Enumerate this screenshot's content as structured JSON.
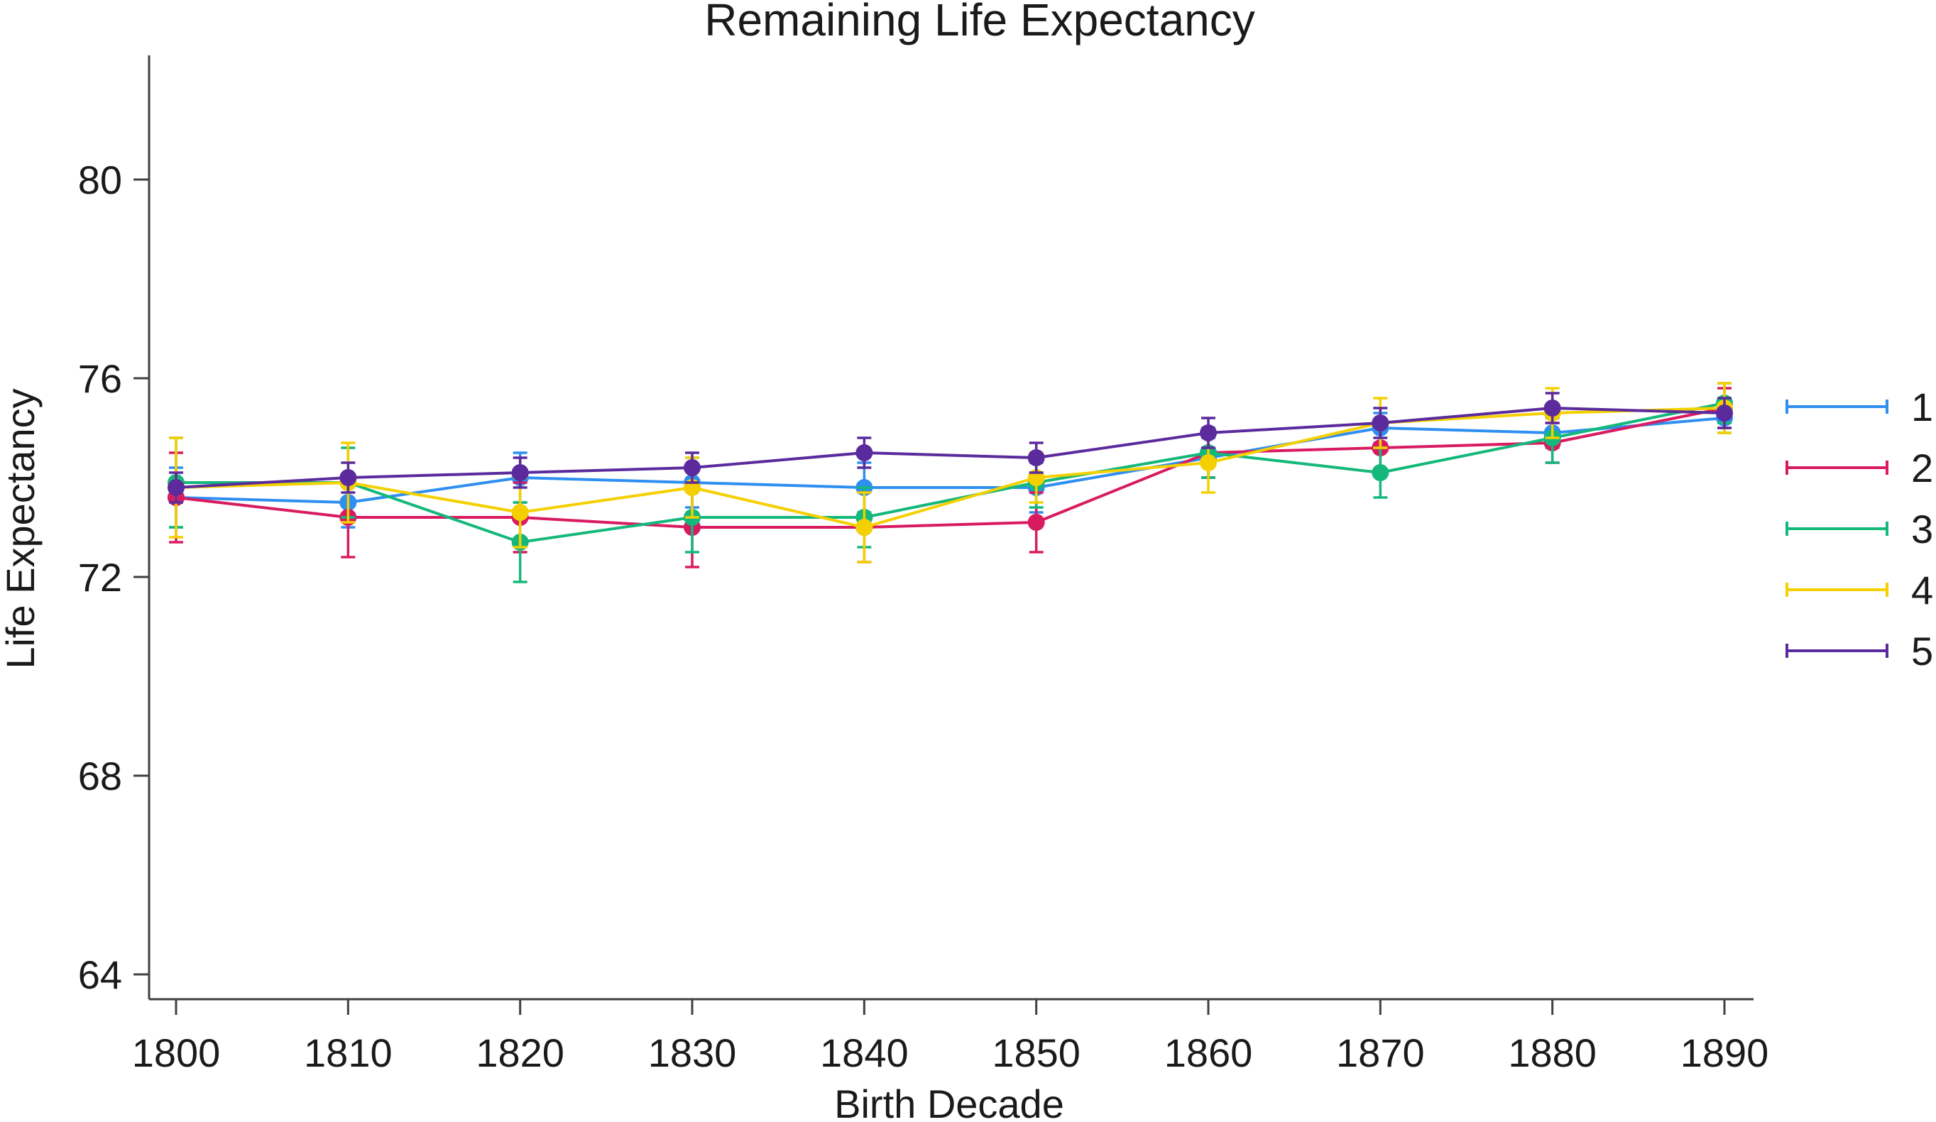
{
  "chart_data": {
    "type": "line",
    "title": "Remaining Life Expectancy",
    "xlabel": "Birth Decade",
    "ylabel": "Life Expectancy",
    "x": [
      1800,
      1810,
      1820,
      1830,
      1840,
      1850,
      1860,
      1870,
      1880,
      1890
    ],
    "xlim": [
      1800,
      1890
    ],
    "ylim": [
      63.5,
      82.5
    ],
    "yticks": [
      64,
      68,
      72,
      76,
      80
    ],
    "grid": false,
    "legend_position": "right",
    "error_bars": true,
    "series": [
      {
        "name": "1",
        "color": "#2E8FF0",
        "values": [
          73.6,
          73.5,
          74.0,
          73.9,
          73.8,
          73.8,
          74.4,
          75.0,
          74.9,
          75.2
        ],
        "err": [
          0.6,
          0.5,
          0.5,
          0.5,
          0.5,
          0.5,
          0.4,
          0.3,
          0.3,
          0.3
        ]
      },
      {
        "name": "2",
        "color": "#D81B60",
        "values": [
          73.6,
          73.2,
          73.2,
          73.0,
          73.0,
          73.1,
          74.5,
          74.6,
          74.7,
          75.4
        ],
        "err": [
          0.9,
          0.8,
          0.7,
          0.8,
          0.7,
          0.6,
          0.5,
          0.5,
          0.4,
          0.4
        ]
      },
      {
        "name": "3",
        "color": "#14B87B",
        "values": [
          73.9,
          73.9,
          72.7,
          73.2,
          73.2,
          73.9,
          74.5,
          74.1,
          74.8,
          75.5
        ],
        "err": [
          0.9,
          0.7,
          0.8,
          0.7,
          0.6,
          0.5,
          0.5,
          0.5,
          0.5,
          0.4
        ]
      },
      {
        "name": "4",
        "color": "#F5D000",
        "values": [
          73.8,
          73.9,
          73.3,
          73.8,
          73.0,
          74.0,
          74.3,
          75.1,
          75.3,
          75.4
        ],
        "err": [
          1.0,
          0.8,
          0.7,
          0.6,
          0.7,
          0.5,
          0.6,
          0.5,
          0.5,
          0.5
        ]
      },
      {
        "name": "5",
        "color": "#5B2A9C",
        "values": [
          73.8,
          74.0,
          74.1,
          74.2,
          74.5,
          74.4,
          74.9,
          75.1,
          75.4,
          75.3
        ],
        "err": [
          0.3,
          0.3,
          0.3,
          0.3,
          0.3,
          0.3,
          0.3,
          0.3,
          0.3,
          0.3
        ]
      }
    ]
  }
}
